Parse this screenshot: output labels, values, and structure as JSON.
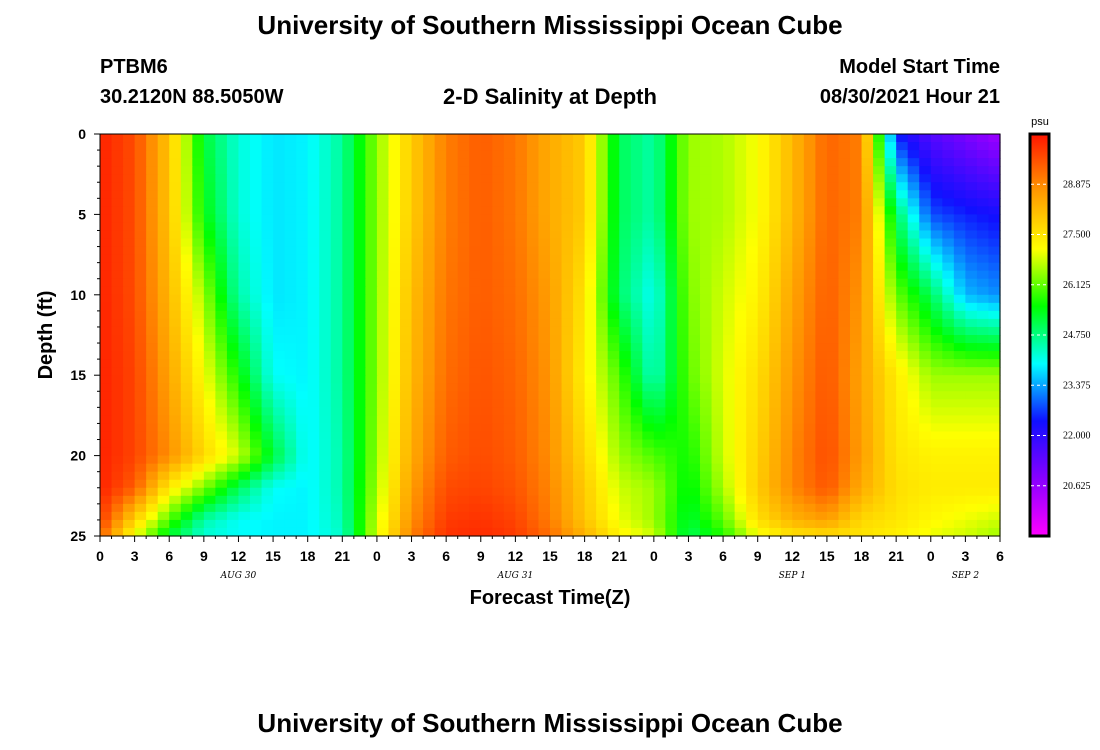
{
  "header": {
    "title": "University of Southern Mississippi Ocean Cube",
    "station_id": "PTBM6",
    "station_coords": "30.2120N  88.5050W",
    "plot_title": "2-D Salinity at Depth",
    "model_start_label": "Model Start Time",
    "model_start_value": "08/30/2021 Hour 21"
  },
  "footer": {
    "title": "University of Southern Mississippi Ocean Cube"
  },
  "chart_data": {
    "type": "heatmap",
    "title": "2-D Salinity at Depth",
    "xlabel": "Forecast Time(Z)",
    "ylabel": "Depth (ft)",
    "x_range_hours": [
      0,
      78
    ],
    "y_range_ft": [
      0,
      25
    ],
    "x_ticks": [
      "0",
      "3",
      "6",
      "9",
      "12",
      "15",
      "18",
      "21",
      "0",
      "3",
      "6",
      "9",
      "12",
      "15",
      "18",
      "21",
      "0",
      "3",
      "6",
      "9",
      "12",
      "15",
      "18",
      "21",
      "0",
      "3",
      "6"
    ],
    "y_ticks": [
      "0",
      "5",
      "10",
      "15",
      "20",
      "25"
    ],
    "day_labels": [
      {
        "text": "AUG 30",
        "at_hour": 12
      },
      {
        "text": "AUG 31",
        "at_hour": 36
      },
      {
        "text": "SEP 1",
        "at_hour": 60
      },
      {
        "text": "SEP 2",
        "at_hour": 75
      }
    ],
    "colorbar": {
      "unit": "psu",
      "min": 19.25,
      "max": 30.25,
      "tick_values": [
        "28.875",
        "27.500",
        "26.125",
        "24.750",
        "23.375",
        "22.000",
        "20.625"
      ],
      "colors": [
        "#ff00ff",
        "#8800ff",
        "#1010ff",
        "#00ffff",
        "#00ff00",
        "#ffff00",
        "#ff9900",
        "#ff1500"
      ]
    },
    "depth_levels_ft": [
      0,
      5,
      10,
      15,
      20,
      22,
      24,
      25
    ],
    "time_hours": [
      0,
      3,
      6,
      9,
      12,
      15,
      18,
      21,
      24,
      27,
      30,
      33,
      36,
      39,
      42,
      45,
      48,
      51,
      54,
      57,
      60,
      63,
      66,
      69,
      72,
      75,
      78
    ],
    "values_psu": [
      [
        30.1,
        29.6,
        28.0,
        25.2,
        24.2,
        23.8,
        23.9,
        24.6,
        26.4,
        27.9,
        29.0,
        29.4,
        29.1,
        28.4,
        27.9,
        25.0,
        24.5,
        26.5,
        26.6,
        27.1,
        28.2,
        29.3,
        29.0,
        22.5,
        21.5,
        21.0,
        20.5
      ],
      [
        30.1,
        29.6,
        28.0,
        25.5,
        24.2,
        23.8,
        23.9,
        24.6,
        26.4,
        27.9,
        29.0,
        29.4,
        29.1,
        28.4,
        27.9,
        25.0,
        24.5,
        26.5,
        26.6,
        27.1,
        28.2,
        29.3,
        29.0,
        25.0,
        22.8,
        22.5,
        22.3
      ],
      [
        30.1,
        29.6,
        28.2,
        26.5,
        24.5,
        23.8,
        23.9,
        24.6,
        26.4,
        28.1,
        29.1,
        29.4,
        29.2,
        28.6,
        27.5,
        24.9,
        24.0,
        26.3,
        26.8,
        27.3,
        28.5,
        29.4,
        28.7,
        26.2,
        25.0,
        23.5,
        23.2
      ],
      [
        30.1,
        29.7,
        28.5,
        27.1,
        25.6,
        24.0,
        23.9,
        24.6,
        26.4,
        28.2,
        29.2,
        29.5,
        29.3,
        28.7,
        27.3,
        26.0,
        24.3,
        26.1,
        26.9,
        27.6,
        28.7,
        29.5,
        28.5,
        27.4,
        26.5,
        26.5,
        26.5
      ],
      [
        30.1,
        29.7,
        28.8,
        27.7,
        26.8,
        25.2,
        23.9,
        24.5,
        26.5,
        28.4,
        29.4,
        29.6,
        29.4,
        28.8,
        27.7,
        26.5,
        26.0,
        25.6,
        26.8,
        27.8,
        28.9,
        29.6,
        28.6,
        27.5,
        27.3,
        27.3,
        27.3
      ],
      [
        30.1,
        29.4,
        27.4,
        26.3,
        25.0,
        24.0,
        23.9,
        24.5,
        26.6,
        28.6,
        29.6,
        29.7,
        29.5,
        28.9,
        27.9,
        26.8,
        26.5,
        25.4,
        26.6,
        27.9,
        28.9,
        29.5,
        28.4,
        27.6,
        27.4,
        27.4,
        27.4
      ],
      [
        29.8,
        27.8,
        26.0,
        24.5,
        24.0,
        23.9,
        23.9,
        24.4,
        26.8,
        28.8,
        29.8,
        29.9,
        29.7,
        29.0,
        28.0,
        27.0,
        26.5,
        25.2,
        26.1,
        27.6,
        28.3,
        28.6,
        27.7,
        27.5,
        27.2,
        27.0,
        26.8
      ],
      [
        29.3,
        27.0,
        25.2,
        24.2,
        24.0,
        23.9,
        23.9,
        24.3,
        26.9,
        29.0,
        29.9,
        30.0,
        29.8,
        29.2,
        28.3,
        27.3,
        26.8,
        25.0,
        25.7,
        27.0,
        27.5,
        27.6,
        27.5,
        27.3,
        27.0,
        26.8,
        26.5
      ]
    ]
  }
}
